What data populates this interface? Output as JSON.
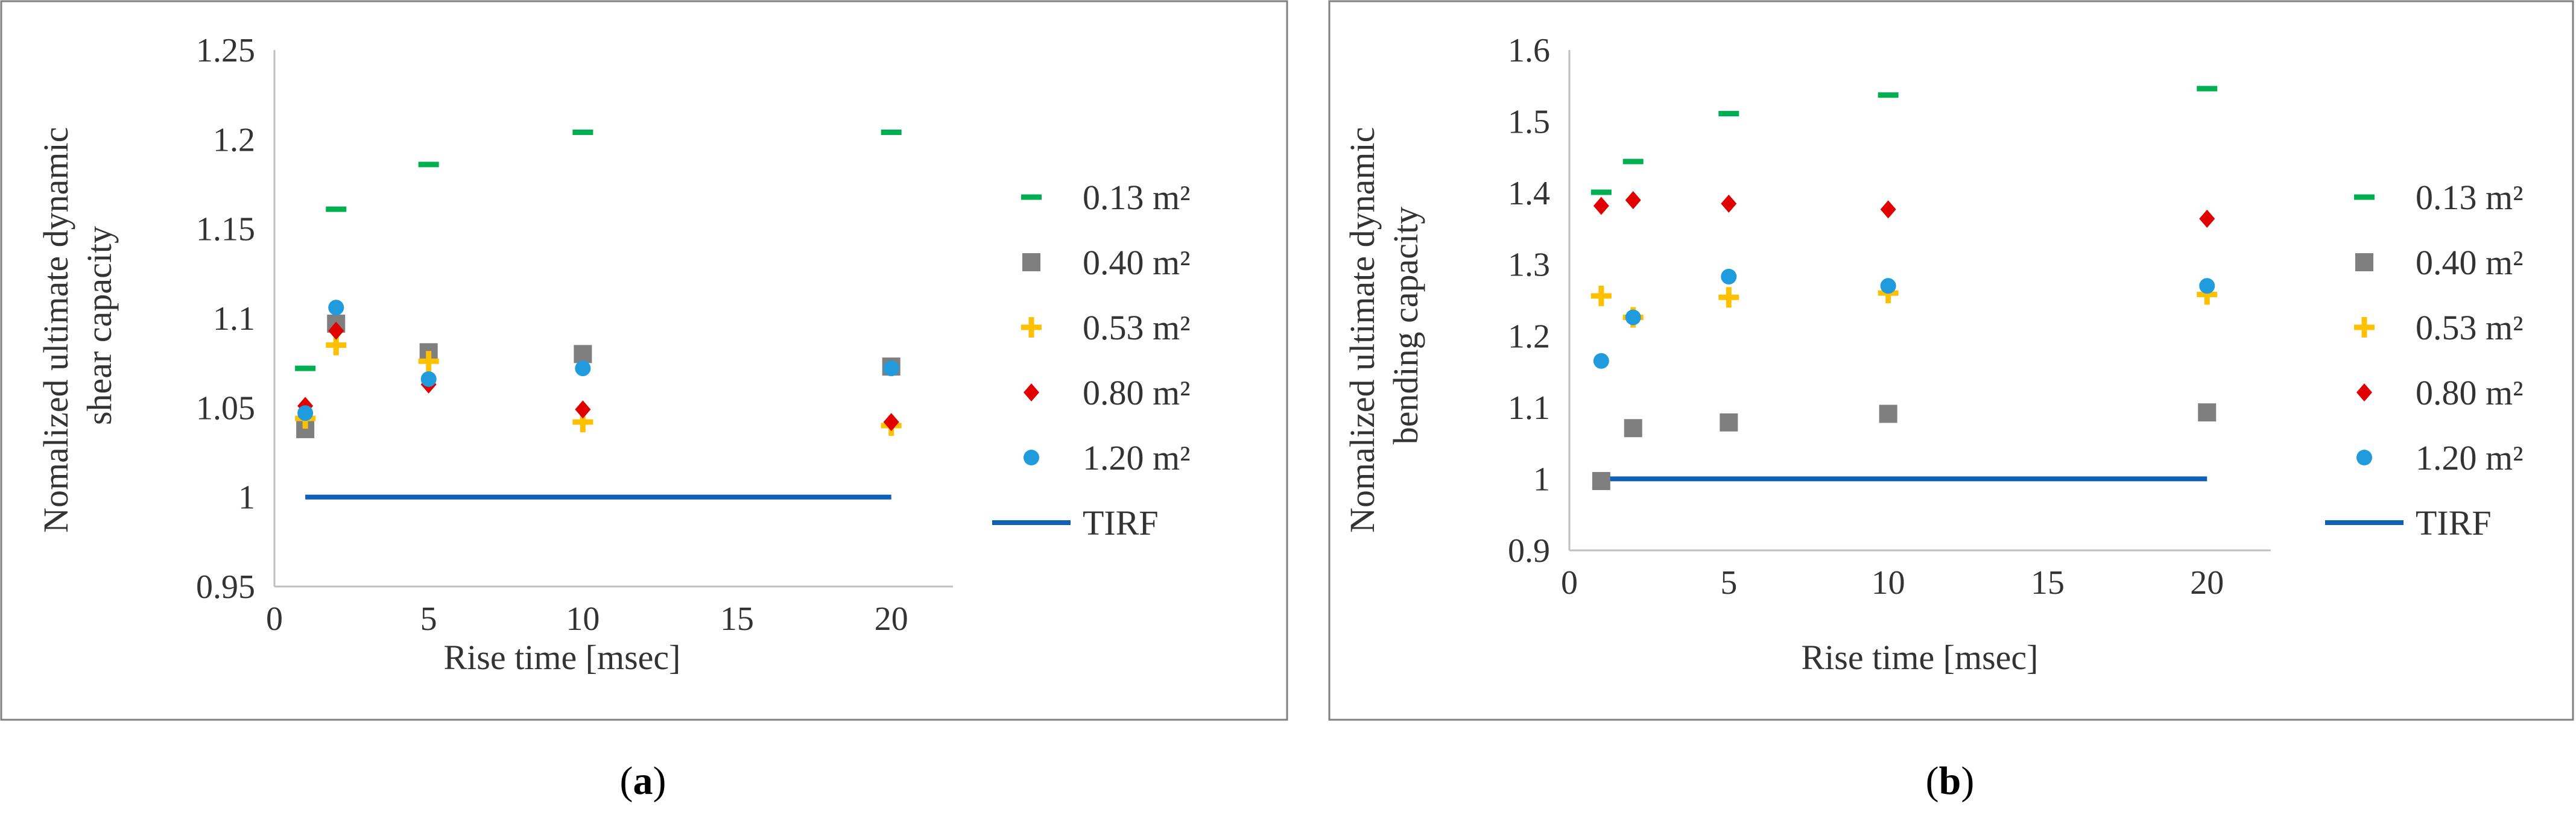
{
  "colors": {
    "s013": "#00B050",
    "s040": "#7F7F7F",
    "s053": "#FFC000",
    "s080": "#E00000",
    "s120": "#1F9BDE",
    "tirf": "#0F5EB8",
    "frame": "#808080",
    "axis": "#BFBFBF"
  },
  "legend_labels": {
    "s013": "0.13 m²",
    "s040": "0.40 m²",
    "s053": "0.53 m²",
    "s080": "0.80 m²",
    "s120": "1.20 m²",
    "tirf": "TIRF"
  },
  "chart_data": [
    {
      "panel": "a",
      "type": "scatter",
      "xlabel": "Rise time [msec]",
      "ylabel_lines": [
        "Nomalized ultimate dynamic",
        "shear capacity"
      ],
      "xlim": [
        0,
        22
      ],
      "ylim": [
        0.95,
        1.25
      ],
      "xticks": [
        0,
        5,
        10,
        15,
        20
      ],
      "yticks": [
        0.95,
        1,
        1.05,
        1.1,
        1.15,
        1.2,
        1.25
      ],
      "ytick_labels": [
        "0.95",
        "1",
        "1.05",
        "1.1",
        "1.15",
        "1.2",
        "1.25"
      ],
      "xtick_labels": [
        "0",
        "5",
        "10",
        "15",
        "20"
      ],
      "x": [
        1,
        2,
        5,
        10,
        20
      ],
      "series": [
        {
          "key": "s013",
          "marker": "dash",
          "values": [
            1.072,
            1.161,
            1.186,
            1.204,
            1.204
          ]
        },
        {
          "key": "s040",
          "marker": "square",
          "values": [
            1.038,
            1.097,
            1.081,
            1.08,
            1.073
          ]
        },
        {
          "key": "s053",
          "marker": "plus",
          "values": [
            1.044,
            1.085,
            1.076,
            1.042,
            1.04
          ]
        },
        {
          "key": "s080",
          "marker": "diamond",
          "values": [
            1.051,
            1.093,
            1.063,
            1.049,
            1.042
          ]
        },
        {
          "key": "s120",
          "marker": "circle",
          "values": [
            1.047,
            1.106,
            1.066,
            1.072,
            1.072
          ]
        }
      ],
      "line": {
        "key": "tirf",
        "x": [
          1,
          20
        ],
        "y": [
          1,
          1
        ]
      }
    },
    {
      "panel": "b",
      "type": "scatter",
      "xlabel": "Rise time [msec]",
      "ylabel_lines": [
        "Nomalized ultimate dynamic",
        "bending capacity"
      ],
      "xlim": [
        0,
        22
      ],
      "ylim": [
        0.9,
        1.6
      ],
      "xticks": [
        0,
        5,
        10,
        15,
        20
      ],
      "yticks": [
        0.9,
        1,
        1.1,
        1.2,
        1.3,
        1.4,
        1.5,
        1.6
      ],
      "ytick_labels": [
        "0.9",
        "1",
        "1.1",
        "1.2",
        "1.3",
        "1.4",
        "1.5",
        "1.6"
      ],
      "xtick_labels": [
        "0",
        "5",
        "10",
        "15",
        "20"
      ],
      "x": [
        1,
        2,
        5,
        10,
        20
      ],
      "series": [
        {
          "key": "s013",
          "marker": "dash",
          "values": [
            1.401,
            1.444,
            1.511,
            1.537,
            1.546
          ]
        },
        {
          "key": "s040",
          "marker": "square",
          "values": [
            0.997,
            1.071,
            1.079,
            1.091,
            1.093
          ]
        },
        {
          "key": "s053",
          "marker": "plus",
          "values": [
            1.256,
            1.226,
            1.254,
            1.26,
            1.258
          ]
        },
        {
          "key": "s080",
          "marker": "diamond",
          "values": [
            1.382,
            1.39,
            1.385,
            1.377,
            1.364
          ]
        },
        {
          "key": "s120",
          "marker": "circle",
          "values": [
            1.165,
            1.226,
            1.283,
            1.27,
            1.27
          ]
        }
      ],
      "line": {
        "key": "tirf",
        "x": [
          1,
          20
        ],
        "y": [
          1,
          1
        ]
      }
    }
  ],
  "captions": [
    {
      "open": "(",
      "letter": "a",
      "close": ")"
    },
    {
      "open": "(",
      "letter": "b",
      "close": ")"
    }
  ]
}
